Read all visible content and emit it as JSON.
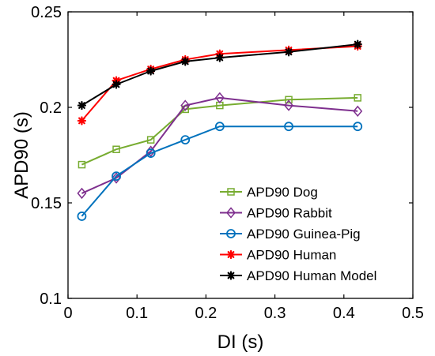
{
  "chart_data": {
    "type": "line",
    "xlabel": "DI (s)",
    "ylabel": "APD90 (s)",
    "xlim": [
      0,
      0.5
    ],
    "ylim": [
      0.1,
      0.25
    ],
    "x_ticks": [
      0,
      0.1,
      0.2,
      0.3,
      0.4,
      0.5
    ],
    "x_tick_labels": [
      "0",
      "0.1",
      "0.2",
      "0.3",
      "0.4",
      "0.5"
    ],
    "y_ticks": [
      0.1,
      0.15,
      0.2,
      0.25
    ],
    "y_tick_labels": [
      "0.1",
      "0.15",
      "0.2",
      "0.25"
    ],
    "grid": false,
    "legend_position": "bottom-right",
    "series": [
      {
        "name": "APD90 Dog",
        "color": "#77ac30",
        "marker": "square",
        "x": [
          0.02,
          0.07,
          0.12,
          0.17,
          0.22,
          0.32,
          0.42
        ],
        "y": [
          0.17,
          0.178,
          0.183,
          0.199,
          0.201,
          0.204,
          0.205
        ]
      },
      {
        "name": "APD90 Rabbit",
        "color": "#7e2f8e",
        "marker": "diamond",
        "x": [
          0.02,
          0.07,
          0.12,
          0.17,
          0.22,
          0.32,
          0.42
        ],
        "y": [
          0.155,
          0.163,
          0.177,
          0.201,
          0.205,
          0.201,
          0.198
        ]
      },
      {
        "name": "APD90 Guinea-Pig",
        "color": "#0072bd",
        "marker": "circle",
        "x": [
          0.02,
          0.07,
          0.12,
          0.17,
          0.22,
          0.32,
          0.42
        ],
        "y": [
          0.143,
          0.164,
          0.176,
          0.183,
          0.19,
          0.19,
          0.19
        ]
      },
      {
        "name": "APD90 Human",
        "color": "#ff0000",
        "marker": "asterisk",
        "x": [
          0.02,
          0.07,
          0.12,
          0.17,
          0.22,
          0.32,
          0.42
        ],
        "y": [
          0.193,
          0.214,
          0.22,
          0.225,
          0.228,
          0.23,
          0.232
        ]
      },
      {
        "name": "APD90 Human Model",
        "color": "#000000",
        "marker": "asterisk",
        "x": [
          0.02,
          0.07,
          0.12,
          0.17,
          0.22,
          0.32,
          0.42
        ],
        "y": [
          0.201,
          0.212,
          0.219,
          0.224,
          0.226,
          0.229,
          0.233
        ]
      }
    ]
  }
}
